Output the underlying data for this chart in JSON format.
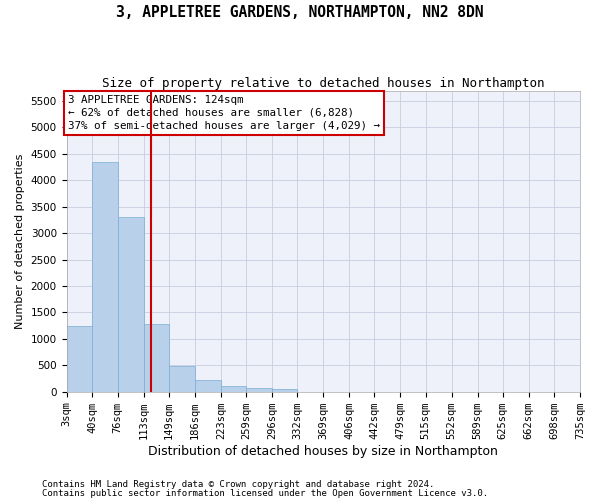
{
  "title": "3, APPLETREE GARDENS, NORTHAMPTON, NN2 8DN",
  "subtitle": "Size of property relative to detached houses in Northampton",
  "xlabel": "Distribution of detached houses by size in Northampton",
  "ylabel": "Number of detached properties",
  "annotation_line1": "3 APPLETREE GARDENS: 124sqm",
  "annotation_line2": "← 62% of detached houses are smaller (6,828)",
  "annotation_line3": "37% of semi-detached houses are larger (4,029) →",
  "footnote1": "Contains HM Land Registry data © Crown copyright and database right 2024.",
  "footnote2": "Contains public sector information licensed under the Open Government Licence v3.0.",
  "bar_color": "#b8d0ea",
  "bar_edge_color": "#7aadd4",
  "property_line_color": "#cc0000",
  "annotation_box_color": "#cc0000",
  "background_color": "#eef1fa",
  "grid_color": "#c8cedf",
  "bin_edges": [
    3,
    40,
    76,
    113,
    149,
    186,
    223,
    259,
    296,
    332,
    369,
    406,
    442,
    479,
    515,
    552,
    589,
    625,
    662,
    698,
    735
  ],
  "bar_heights": [
    1250,
    4350,
    3300,
    1280,
    490,
    215,
    100,
    75,
    55,
    0,
    0,
    0,
    0,
    0,
    0,
    0,
    0,
    0,
    0,
    0
  ],
  "property_size": 124,
  "ylim": [
    0,
    5700
  ],
  "yticks": [
    0,
    500,
    1000,
    1500,
    2000,
    2500,
    3000,
    3500,
    4000,
    4500,
    5000,
    5500
  ],
  "tick_label_fontsize": 7.5,
  "title_fontsize": 10.5,
  "subtitle_fontsize": 9,
  "xlabel_fontsize": 9,
  "ylabel_fontsize": 8,
  "annotation_fontsize": 7.8,
  "footnote_fontsize": 6.5
}
